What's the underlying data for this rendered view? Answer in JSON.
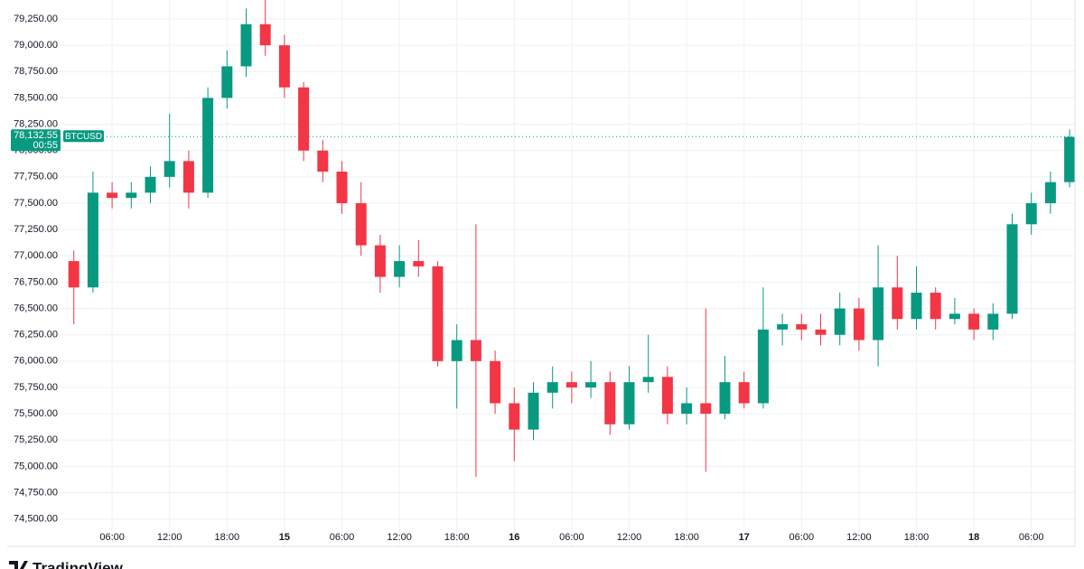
{
  "chart_data": {
    "type": "candlestick",
    "categories": [
      null,
      null,
      "06:00",
      null,
      null,
      "12:00",
      null,
      null,
      "18:00",
      null,
      null,
      "15",
      null,
      null,
      "06:00",
      null,
      null,
      "12:00",
      null,
      null,
      "18:00",
      null,
      null,
      "16",
      null,
      null,
      "06:00",
      null,
      null,
      "12:00",
      null,
      null,
      "18:00",
      null,
      null,
      "17",
      null,
      null,
      "06:00",
      null,
      null,
      "12:00",
      null,
      null,
      "18:00",
      null,
      null,
      "18",
      null,
      null,
      "06:00",
      null,
      null
    ],
    "open": [
      76950,
      76700,
      77600,
      77550,
      77600,
      77750,
      77900,
      77600,
      78500,
      78800,
      79200,
      79000,
      78600,
      78000,
      77800,
      77500,
      77100,
      76800,
      76950,
      76900,
      76000,
      76200,
      76000,
      75600,
      75350,
      75700,
      75800,
      75750,
      75800,
      75400,
      75800,
      75850,
      75500,
      75600,
      75500,
      75800,
      75600,
      76300,
      76350,
      76300,
      76250,
      76500,
      76200,
      76700,
      76400,
      76650,
      76400,
      76450,
      76300,
      76450,
      77300,
      77500,
      77700
    ],
    "high": [
      77050,
      77800,
      77700,
      77700,
      77850,
      78350,
      78000,
      78600,
      78950,
      79350,
      79500,
      79100,
      78650,
      78100,
      77900,
      77700,
      77200,
      77100,
      77150,
      76950,
      76350,
      77300,
      76100,
      75750,
      75800,
      75950,
      75900,
      76000,
      75900,
      75950,
      76250,
      75950,
      75750,
      76500,
      76050,
      75900,
      76700,
      76450,
      76450,
      76450,
      76650,
      76600,
      77100,
      77000,
      76900,
      76700,
      76600,
      76500,
      76550,
      77400,
      77600,
      77800,
      78200
    ],
    "low": [
      76350,
      76650,
      77450,
      77450,
      77500,
      77650,
      77450,
      77550,
      78400,
      78700,
      78900,
      78500,
      77900,
      77700,
      77400,
      77000,
      76650,
      76700,
      76800,
      75950,
      75550,
      74900,
      75500,
      75050,
      75250,
      75550,
      75600,
      75650,
      75300,
      75350,
      75700,
      75400,
      75400,
      74950,
      75450,
      75550,
      75550,
      76150,
      76200,
      76150,
      76150,
      76100,
      75950,
      76300,
      76300,
      76300,
      76350,
      76200,
      76200,
      76400,
      77200,
      77400,
      77650
    ],
    "close": [
      76700,
      77600,
      77550,
      77600,
      77750,
      77900,
      77600,
      78500,
      78800,
      79200,
      79000,
      78600,
      78000,
      77800,
      77500,
      77100,
      76800,
      76950,
      76900,
      76000,
      76200,
      76000,
      75600,
      75350,
      75700,
      75800,
      75750,
      75800,
      75400,
      75800,
      75850,
      75500,
      75600,
      75500,
      75800,
      75600,
      76300,
      76350,
      76300,
      76250,
      76500,
      76200,
      76700,
      76400,
      76650,
      76400,
      76450,
      76300,
      76450,
      77300,
      77500,
      77700,
      78130
    ],
    "up_color": "#089981",
    "down_color": "#f23645",
    "ylim": [
      74240,
      79430
    ],
    "yticks": [
      {
        "value": 74500,
        "label": "74,500.00"
      },
      {
        "value": 74750,
        "label": "74,750.00"
      },
      {
        "value": 75000,
        "label": "75,000.00"
      },
      {
        "value": 75250,
        "label": "75,250.00"
      },
      {
        "value": 75500,
        "label": "75,500.00"
      },
      {
        "value": 75750,
        "label": "75,750.00"
      },
      {
        "value": 76000,
        "label": "76,000.00"
      },
      {
        "value": 76250,
        "label": "76,250.00"
      },
      {
        "value": 76500,
        "label": "76,500.00"
      },
      {
        "value": 76750,
        "label": "76,750.00"
      },
      {
        "value": 77000,
        "label": "77,000.00"
      },
      {
        "value": 77250,
        "label": "77,250.00"
      },
      {
        "value": 77500,
        "label": "77,500.00"
      },
      {
        "value": 77750,
        "label": "77,750.00"
      },
      {
        "value": 78000,
        "label": "78,000.00"
      },
      {
        "value": 78250,
        "label": "78,250.00"
      },
      {
        "value": 78500,
        "label": "78,500.00"
      },
      {
        "value": 78750,
        "label": "78,750.00"
      },
      {
        "value": 79000,
        "label": "79,000.00"
      },
      {
        "value": 79250,
        "label": "79,250.00"
      }
    ],
    "grid": true,
    "last_price": {
      "value": 78132.55,
      "label": "78,132.55",
      "countdown": "00:55",
      "symbol": "BTCUSD"
    },
    "brand": "TradingView"
  }
}
